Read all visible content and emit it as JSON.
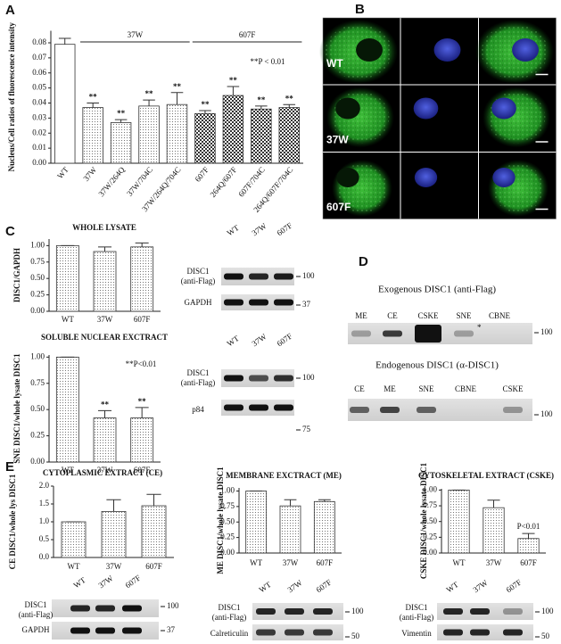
{
  "chart_data": [
    {
      "type": "bar",
      "y_label": "Nucleus/Cell ratios of fluorescence intensity",
      "categories": [
        "WT",
        "37W",
        "37W/264Q",
        "37W/704C",
        "37W/264Q/704C",
        "607F",
        "264Q/607F",
        "607F/704C",
        "264Q/607F/704C"
      ],
      "values": [
        0.079,
        0.037,
        0.027,
        0.038,
        0.039,
        0.033,
        0.045,
        0.036,
        0.037
      ],
      "errors": [
        0.004,
        0.003,
        0.002,
        0.004,
        0.008,
        0.002,
        0.006,
        0.002,
        0.002
      ],
      "stars": [
        null,
        "**",
        "**",
        "**",
        "**",
        "**",
        "**",
        "**",
        "**"
      ],
      "fills": [
        "plain",
        "dots",
        "dots",
        "dots",
        "dots",
        "checks",
        "checks",
        "checks",
        "checks"
      ],
      "groups": [
        "37W",
        "607F"
      ],
      "note": "**P < 0.01",
      "ylim": [
        0,
        0.088
      ],
      "yticks": [
        {
          "value": 0,
          "label": "0.00"
        },
        0.01,
        0.02,
        0.03,
        0.04,
        0.05,
        0.06,
        0.07,
        0.08
      ]
    },
    {
      "type": "bar",
      "title": "WHOLE LYSATE",
      "y_label": "DISC1/GAPDH",
      "categories": [
        "WT",
        "37W",
        "607F"
      ],
      "values": [
        1.0,
        0.91,
        0.98
      ],
      "errors": [
        0,
        0.07,
        0.06
      ],
      "fill": "dots",
      "ylim": [
        0,
        1.1
      ],
      "yticks": [
        {
          "value": 0,
          "label": "0.00"
        },
        0.25,
        {
          "value": 0.5,
          "label": "0.50"
        },
        0.75,
        {
          "value": 1,
          "label": "1.00"
        }
      ]
    },
    {
      "type": "bar",
      "title": "SOLUBLE NUCLEAR EXCTRACT",
      "y_label": "SNE DISC1/whole lysate DISC1",
      "categories": [
        "WT",
        "37W",
        "607F"
      ],
      "values": [
        1.0,
        0.42,
        0.42
      ],
      "errors": [
        0,
        0.07,
        0.1
      ],
      "fill": "dots",
      "stars": [
        null,
        "**",
        "**"
      ],
      "note": "**P<0.01",
      "ylim": [
        0,
        1.02
      ],
      "yticks": [
        {
          "value": 0,
          "label": "0.00"
        },
        0.25,
        {
          "value": 0.5,
          "label": "0.50"
        },
        0.75,
        {
          "value": 1,
          "label": "1.00"
        }
      ]
    },
    {
      "type": "bar",
      "title": "CYTOPLASMIC EXTRACT (CE)",
      "y_label": "CE DISC1/whole lys DISC1",
      "categories": [
        "WT",
        "37W",
        "607F"
      ],
      "values": [
        1.0,
        1.29,
        1.45
      ],
      "errors": [
        0,
        0.33,
        0.32
      ],
      "fill": "dots",
      "ylim": [
        0,
        2.0
      ],
      "yticks": [
        {
          "value": 0,
          "label": "0.0"
        },
        0.5,
        {
          "value": 1,
          "label": "1.0"
        },
        1.5,
        {
          "value": 2,
          "label": "2.0"
        }
      ]
    },
    {
      "type": "bar",
      "title": "MEMBRANE EXCTRACT (ME)",
      "y_label": "ME DISC1/whole lysate DISC1",
      "categories": [
        "WT",
        "37W",
        "607F"
      ],
      "values": [
        1.0,
        0.76,
        0.83
      ],
      "errors": [
        0,
        0.1,
        0.03
      ],
      "fill": "dots",
      "ylim": [
        0,
        1.05
      ],
      "yticks": [
        {
          "value": 0,
          "label": "0.00"
        },
        0.25,
        {
          "value": 0.5,
          "label": "0.50"
        },
        0.75,
        {
          "value": 1,
          "label": "1.00"
        }
      ]
    },
    {
      "type": "bar",
      "title": "CYTOSKELETAL EXTRACT (CSKE)",
      "y_label": "CSKE DISC1/whole lysate DISC1",
      "categories": [
        "WT",
        "37W",
        "607F"
      ],
      "values": [
        1.0,
        0.72,
        0.23
      ],
      "errors": [
        0,
        0.12,
        0.08
      ],
      "fill": "dots",
      "note": "P<0.01",
      "ylim": [
        0,
        1.02
      ],
      "yticks": [
        {
          "value": 0,
          "label": "0.00"
        },
        0.25,
        {
          "value": 0.5,
          "label": "0.50"
        },
        0.75,
        {
          "value": 1,
          "label": "1.00"
        }
      ]
    }
  ],
  "panels": {
    "letters": [
      "A",
      "B",
      "C",
      "D",
      "E"
    ],
    "micrographs": {
      "rows": [
        "WT",
        "37W",
        "607F"
      ]
    },
    "blots": [
      {
        "lanes": [
          "WT",
          "37W",
          "607F"
        ],
        "rows": [
          {
            "label": [
              "DISC1",
              "(anti-Flag)"
            ],
            "marker": 100
          },
          {
            "label": [
              "GAPDH"
            ],
            "marker": 37
          }
        ]
      },
      {
        "lanes": [
          "WT",
          "37W",
          "607F"
        ],
        "rows": [
          {
            "label": [
              "DISC1",
              "(anti-Flag)"
            ],
            "marker": 100
          },
          {
            "label": [
              "p84"
            ],
            "marker": 75
          }
        ]
      },
      {
        "title": "Exogenous DISC1 (anti-Flag)",
        "lanes": [
          "ME",
          "CE",
          "CSKE",
          "SNE",
          "CBNE"
        ],
        "rows": [
          {
            "marker": 100
          }
        ],
        "asterisk": "*"
      },
      {
        "title": "Endogenous DISC1 (α-DISC1)",
        "lanes": [
          "CE",
          "ME",
          "SNE",
          "CBNE",
          "CSKE"
        ],
        "rows": [
          {
            "marker": 100
          }
        ]
      },
      {
        "lanes": [
          "WT",
          "37W",
          "607F"
        ],
        "rows": [
          {
            "label": [
              "DISC1",
              "(anti-Flag)"
            ],
            "marker": 100
          },
          {
            "label": [
              "GAPDH"
            ],
            "marker": 37
          }
        ]
      },
      {
        "lanes": [
          "WT",
          "37W",
          "607F"
        ],
        "rows": [
          {
            "label": [
              "DISC1",
              "(anti-Flag)"
            ],
            "marker": 100
          },
          {
            "label": [
              "Calreticulin"
            ],
            "marker": 50
          }
        ]
      },
      {
        "lanes": [
          "WT",
          "37W",
          "607F"
        ],
        "rows": [
          {
            "label": [
              "DISC1",
              "(anti-Flag)"
            ],
            "marker": 100
          },
          {
            "label": [
              "Vimentin"
            ],
            "marker": 50
          }
        ]
      }
    ]
  }
}
